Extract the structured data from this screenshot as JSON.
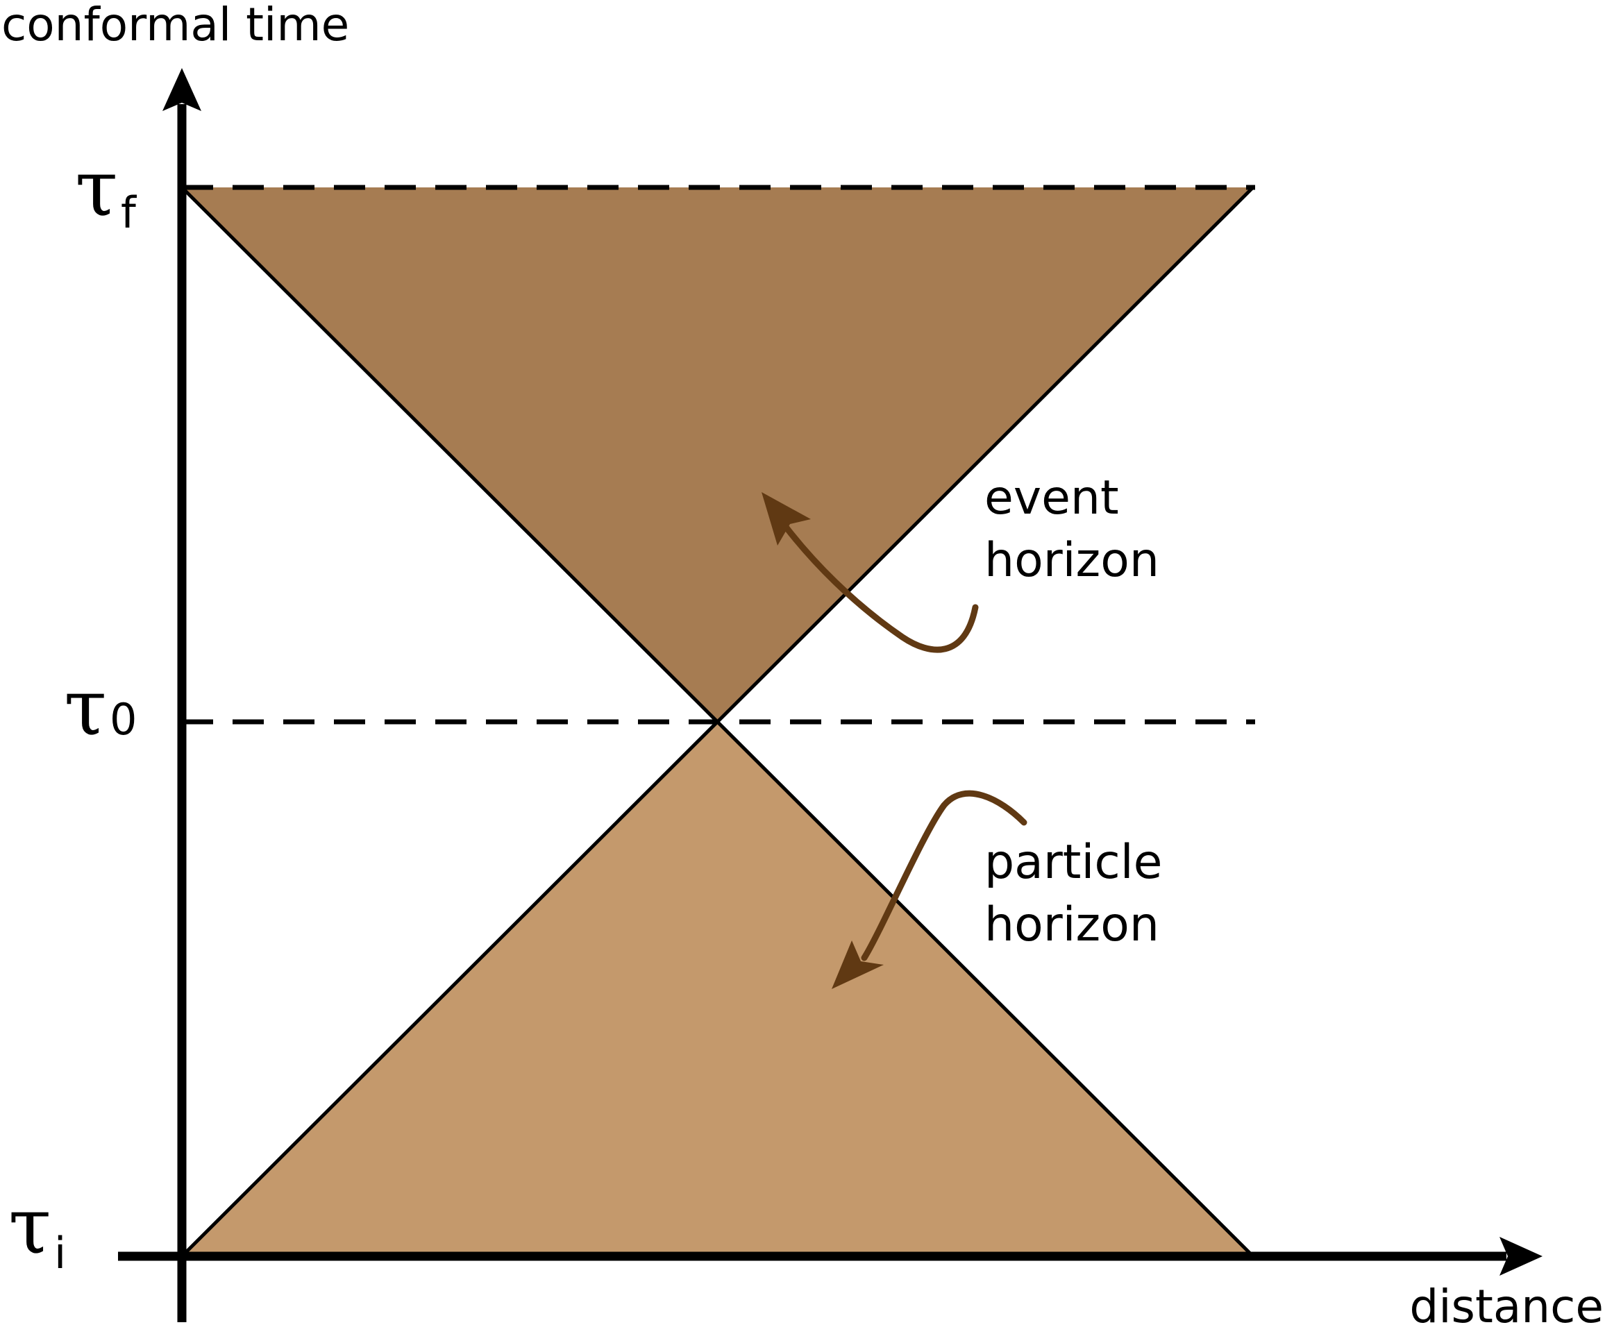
{
  "axes": {
    "y_label": "conformal time",
    "x_label": "distance"
  },
  "time_ticks": {
    "final": {
      "symbol": "τ",
      "sub": "f"
    },
    "present": {
      "symbol": "τ",
      "sub": "0"
    },
    "initial": {
      "symbol": "τ",
      "sub": "i"
    }
  },
  "annotations": {
    "event_horizon": {
      "line1": "event",
      "line2": "horizon"
    },
    "particle_horizon": {
      "line1": "particle",
      "line2": "horizon"
    }
  },
  "colors": {
    "event_region": "#a67c52",
    "particle_region": "#c4996c",
    "arrow": "#603913",
    "lines": "#000000"
  }
}
